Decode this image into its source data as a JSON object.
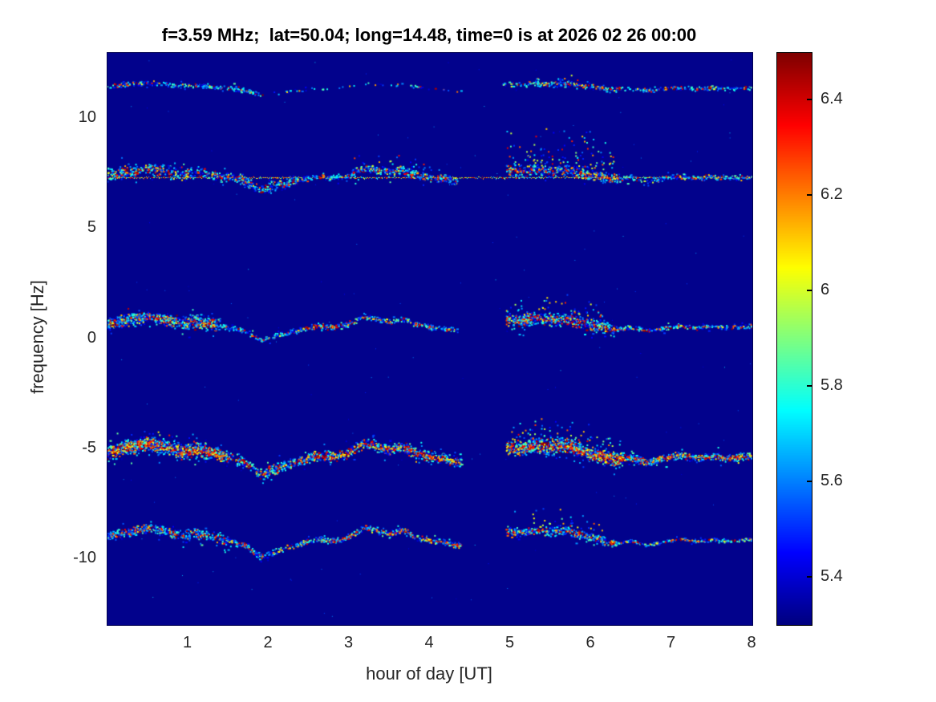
{
  "chart_data": {
    "type": "heatmap",
    "title": "f=3.59 MHz;  lat=50.04; long=14.48, time=0 is at 2026 02 26 00:00",
    "xlabel": "hour of day [UT]",
    "ylabel": "frequency [Hz]",
    "xlim": [
      0,
      8
    ],
    "ylim": [
      -13,
      13
    ],
    "x_tick_values": [
      1,
      2,
      3,
      4,
      5,
      6,
      7,
      8
    ],
    "x_tick_labels": [
      "1",
      "2",
      "3",
      "4",
      "5",
      "6",
      "7",
      "8"
    ],
    "y_tick_values": [
      10,
      5,
      0,
      -5,
      -10
    ],
    "y_tick_labels": [
      "10",
      "5",
      "0",
      "-5",
      "-10"
    ],
    "grid": false,
    "background_value_color": "#02028c",
    "colorbar": {
      "colormap": "jet",
      "range": [
        5.3,
        6.5
      ],
      "tick_values": [
        6.4,
        6.2,
        6.0,
        5.8,
        5.6,
        5.4
      ],
      "tick_labels": [
        "6.4",
        "6.2",
        "6",
        "5.8",
        "5.6",
        "5.4"
      ],
      "position": "right"
    },
    "signal_gap_hours": [
      4.35,
      4.95
    ],
    "doppler_shift_waypoints": [
      [
        0,
        0.1
      ],
      [
        0.25,
        0.28
      ],
      [
        0.5,
        0.38
      ],
      [
        0.7,
        0.3
      ],
      [
        0.9,
        0.12
      ],
      [
        1.1,
        0.22
      ],
      [
        1.3,
        0.1
      ],
      [
        1.5,
        -0.02
      ],
      [
        1.7,
        -0.18
      ],
      [
        1.9,
        -0.55
      ],
      [
        2.05,
        -0.42
      ],
      [
        2.2,
        -0.28
      ],
      [
        2.4,
        -0.12
      ],
      [
        2.6,
        0.02
      ],
      [
        2.8,
        -0.02
      ],
      [
        3.0,
        0.1
      ],
      [
        3.2,
        0.42
      ],
      [
        3.35,
        0.3
      ],
      [
        3.5,
        0.18
      ],
      [
        3.65,
        0.32
      ],
      [
        3.8,
        0.12
      ],
      [
        4.0,
        -0.02
      ],
      [
        4.2,
        -0.08
      ],
      [
        4.35,
        -0.18
      ],
      [
        4.95,
        0.3
      ],
      [
        5.1,
        0.22
      ],
      [
        5.3,
        0.34
      ],
      [
        5.5,
        0.26
      ],
      [
        5.7,
        0.32
      ],
      [
        5.9,
        0.12
      ],
      [
        6.1,
        0.02
      ],
      [
        6.3,
        -0.12
      ],
      [
        6.5,
        -0.02
      ],
      [
        6.7,
        -0.18
      ],
      [
        6.9,
        -0.06
      ],
      [
        7.1,
        0.04
      ],
      [
        7.3,
        -0.06
      ],
      [
        7.5,
        0.02
      ],
      [
        7.7,
        -0.04
      ],
      [
        8,
        0.02
      ]
    ],
    "traces": [
      {
        "name": "spectral-component +11.4 Hz",
        "center_hz": 11.4,
        "wiggle_scale": 0.6,
        "baseline_line": false,
        "segments": [
          {
            "from": 0,
            "to": 1.9,
            "density": 130,
            "spread_hz": 0.1,
            "hot": 0.22
          },
          {
            "from": 1.9,
            "to": 3.35,
            "density": 18,
            "spread_hz": 0.08,
            "hot": 0.12
          },
          {
            "from": 3.35,
            "to": 4.4,
            "density": 26,
            "spread_hz": 0.08,
            "hot": 0.18
          },
          {
            "from": 4.9,
            "to": 6.35,
            "density": 120,
            "spread_hz": 0.13,
            "hot": 0.45
          },
          {
            "from": 6.35,
            "to": 8,
            "density": 95,
            "spread_hz": 0.1,
            "hot": 0.25
          }
        ],
        "clouds": [
          {
            "from": 5.25,
            "to": 6.2,
            "lift_hz": 0.55,
            "density": 40
          }
        ]
      },
      {
        "name": "spectral-component +7.35 Hz",
        "center_hz": 7.35,
        "wiggle_scale": 1.0,
        "baseline_line": true,
        "segments": [
          {
            "from": 0,
            "to": 1.0,
            "density": 290,
            "spread_hz": 0.3,
            "hot": 0.4
          },
          {
            "from": 1.0,
            "to": 2.35,
            "density": 250,
            "spread_hz": 0.26,
            "hot": 0.32
          },
          {
            "from": 2.35,
            "to": 3.05,
            "density": 150,
            "spread_hz": 0.14,
            "hot": 0.3
          },
          {
            "from": 3.05,
            "to": 4.35,
            "density": 220,
            "spread_hz": 0.2,
            "hot": 0.42
          },
          {
            "from": 4.95,
            "to": 6.35,
            "density": 260,
            "spread_hz": 0.24,
            "hot": 0.48
          },
          {
            "from": 6.35,
            "to": 8,
            "density": 130,
            "spread_hz": 0.12,
            "hot": 0.32
          }
        ],
        "clouds": [
          {
            "from": 3.05,
            "to": 4.05,
            "lift_hz": 0.8,
            "density": 55
          },
          {
            "from": 4.95,
            "to": 6.3,
            "lift_hz": 2.1,
            "density": 110
          }
        ]
      },
      {
        "name": "spectral-component +0.55 Hz",
        "center_hz": 0.55,
        "wiggle_scale": 1.1,
        "baseline_line": false,
        "segments": [
          {
            "from": 0,
            "to": 1.4,
            "density": 480,
            "spread_hz": 0.3,
            "hot": 0.45
          },
          {
            "from": 1.4,
            "to": 2.5,
            "density": 170,
            "spread_hz": 0.11,
            "hot": 0.3
          },
          {
            "from": 2.5,
            "to": 3.1,
            "density": 190,
            "spread_hz": 0.13,
            "hot": 0.5
          },
          {
            "from": 3.1,
            "to": 4.35,
            "density": 170,
            "spread_hz": 0.11,
            "hot": 0.38
          },
          {
            "from": 4.95,
            "to": 6.3,
            "density": 400,
            "spread_hz": 0.28,
            "hot": 0.55
          },
          {
            "from": 6.3,
            "to": 8,
            "density": 160,
            "spread_hz": 0.09,
            "hot": 0.42
          }
        ],
        "clouds": [
          {
            "from": 4.95,
            "to": 6.15,
            "lift_hz": 1.25,
            "density": 85
          }
        ]
      },
      {
        "name": "spectral-component -5.35 Hz",
        "center_hz": -5.35,
        "wiggle_scale": 1.5,
        "baseline_line": false,
        "segments": [
          {
            "from": 0,
            "to": 1.5,
            "density": 620,
            "spread_hz": 0.34,
            "hot": 0.72
          },
          {
            "from": 1.5,
            "to": 2.6,
            "density": 320,
            "spread_hz": 0.24,
            "hot": 0.45
          },
          {
            "from": 2.6,
            "to": 4.4,
            "density": 400,
            "spread_hz": 0.24,
            "hot": 0.65
          },
          {
            "from": 4.95,
            "to": 6.4,
            "density": 560,
            "spread_hz": 0.33,
            "hot": 0.7
          },
          {
            "from": 6.4,
            "to": 8,
            "density": 320,
            "spread_hz": 0.17,
            "hot": 0.55
          }
        ],
        "clouds": [
          {
            "from": 0.1,
            "to": 1.25,
            "lift_hz": 0.85,
            "density": 70
          },
          {
            "from": 4.95,
            "to": 6.3,
            "lift_hz": 1.45,
            "density": 120
          }
        ]
      },
      {
        "name": "spectral-component -9.15 Hz",
        "center_hz": -9.15,
        "wiggle_scale": 1.4,
        "baseline_line": false,
        "segments": [
          {
            "from": 0,
            "to": 1.5,
            "density": 300,
            "spread_hz": 0.24,
            "hot": 0.42
          },
          {
            "from": 1.5,
            "to": 2.6,
            "density": 175,
            "spread_hz": 0.14,
            "hot": 0.35
          },
          {
            "from": 2.6,
            "to": 4.4,
            "density": 240,
            "spread_hz": 0.14,
            "hot": 0.48
          },
          {
            "from": 4.95,
            "to": 6.3,
            "density": 260,
            "spread_hz": 0.2,
            "hot": 0.5
          },
          {
            "from": 6.3,
            "to": 8,
            "density": 135,
            "spread_hz": 0.07,
            "hot": 0.3
          }
        ],
        "clouds": [
          {
            "from": 5.0,
            "to": 6.15,
            "lift_hz": 1.15,
            "density": 55
          }
        ]
      }
    ]
  }
}
